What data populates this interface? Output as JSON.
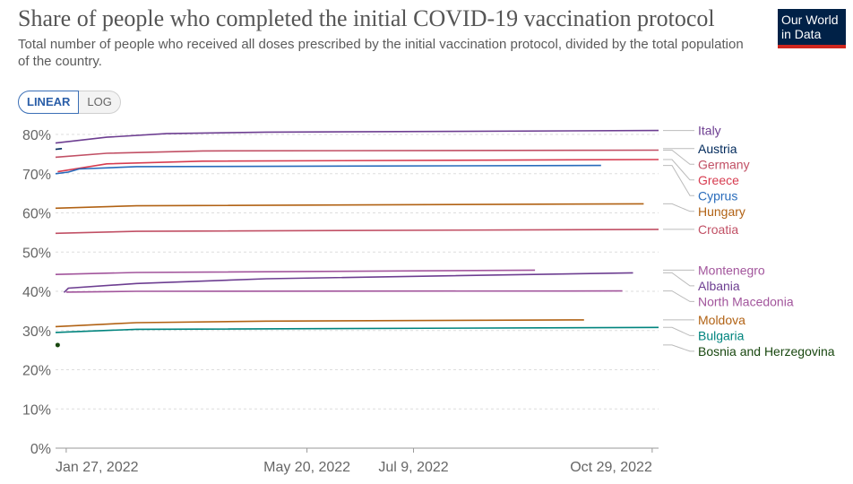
{
  "header": {
    "title": "Share of people who completed the initial COVID-19 vaccination protocol",
    "subtitle": "Total number of people who received all doses prescribed by the initial vaccination protocol, divided by the total population of the country.",
    "logo_line1": "Our World",
    "logo_line2": "in Data"
  },
  "controls": {
    "linear_label": "LINEAR",
    "log_label": "LOG"
  },
  "colors": {
    "logo_bg": "#002147",
    "logo_accent": "#ce261e",
    "grid": "#dddddd",
    "text": "#555555"
  },
  "chart_data": {
    "type": "line",
    "title": "Share of people who completed the initial COVID-19 vaccination protocol",
    "y_scale": "linear",
    "ylim": [
      0,
      80
    ],
    "yticks": [
      "0%",
      "10%",
      "20%",
      "30%",
      "40%",
      "50%",
      "60%",
      "70%",
      "80%"
    ],
    "xlim": [
      "2022-01-22",
      "2022-11-01"
    ],
    "xticks": [
      {
        "date": "2022-01-27",
        "label": "Jan 27, 2022"
      },
      {
        "date": "2022-05-20",
        "label": "May 20, 2022"
      },
      {
        "date": "2022-07-09",
        "label": "Jul 9, 2022"
      },
      {
        "date": "2022-10-29",
        "label": "Oct 29, 2022"
      }
    ],
    "grid": true,
    "legend_position": "right",
    "series": [
      {
        "name": "Italy",
        "color": "#6d3e91",
        "points": [
          [
            "2022-01-22",
            77.8
          ],
          [
            "2022-02-15",
            79.3
          ],
          [
            "2022-03-15",
            80.2
          ],
          [
            "2022-05-01",
            80.6
          ],
          [
            "2022-11-01",
            81.0
          ]
        ]
      },
      {
        "name": "Austria",
        "color": "#00295b",
        "points": [
          [
            "2022-01-22",
            76.2
          ],
          [
            "2022-01-25",
            76.4
          ]
        ]
      },
      {
        "name": "Germany",
        "color": "#c15065",
        "points": [
          [
            "2022-01-22",
            74.2
          ],
          [
            "2022-02-15",
            75.2
          ],
          [
            "2022-04-01",
            75.8
          ],
          [
            "2022-11-01",
            76.0
          ]
        ]
      },
      {
        "name": "Greece",
        "color": "#d73c50",
        "points": [
          [
            "2022-01-23",
            70.5
          ],
          [
            "2022-02-15",
            72.5
          ],
          [
            "2022-04-01",
            73.2
          ],
          [
            "2022-11-01",
            73.6
          ]
        ]
      },
      {
        "name": "Cyprus",
        "color": "#286bbb",
        "points": [
          [
            "2022-01-22",
            70.0
          ],
          [
            "2022-01-28",
            70.4
          ],
          [
            "2022-02-02",
            71.2
          ],
          [
            "2022-03-01",
            71.8
          ],
          [
            "2022-10-05",
            72.1
          ]
        ]
      },
      {
        "name": "Hungary",
        "color": "#b16214",
        "points": [
          [
            "2022-01-22",
            61.2
          ],
          [
            "2022-03-01",
            61.8
          ],
          [
            "2022-10-25",
            62.3
          ]
        ]
      },
      {
        "name": "Croatia",
        "color": "#c15065",
        "points": [
          [
            "2022-01-22",
            54.8
          ],
          [
            "2022-03-01",
            55.3
          ],
          [
            "2022-11-01",
            55.8
          ]
        ]
      },
      {
        "name": "Montenegro",
        "color": "#a2559c",
        "points": [
          [
            "2022-01-22",
            44.3
          ],
          [
            "2022-03-01",
            44.8
          ],
          [
            "2022-09-04",
            45.4
          ]
        ]
      },
      {
        "name": "Albania",
        "color": "#6d3e91",
        "points": [
          [
            "2022-01-26",
            39.7
          ],
          [
            "2022-01-28",
            40.8
          ],
          [
            "2022-03-01",
            42.0
          ],
          [
            "2022-05-01",
            43.2
          ],
          [
            "2022-10-20",
            44.7
          ]
        ]
      },
      {
        "name": "North Macedonia",
        "color": "#a2559c",
        "points": [
          [
            "2022-01-27",
            39.8
          ],
          [
            "2022-03-01",
            40.0
          ],
          [
            "2022-10-15",
            40.1
          ]
        ]
      },
      {
        "name": "Moldova",
        "color": "#b16214",
        "points": [
          [
            "2022-01-22",
            31.0
          ],
          [
            "2022-03-01",
            32.0
          ],
          [
            "2022-05-01",
            32.4
          ],
          [
            "2022-09-27",
            32.7
          ]
        ]
      },
      {
        "name": "Bulgaria",
        "color": "#00847e",
        "points": [
          [
            "2022-01-22",
            29.5
          ],
          [
            "2022-03-01",
            30.3
          ],
          [
            "2022-11-01",
            30.8
          ]
        ]
      },
      {
        "name": "Bosnia and Herzegovina",
        "color": "#18470f",
        "points": [
          [
            "2022-01-23",
            26.3
          ]
        ]
      }
    ]
  }
}
